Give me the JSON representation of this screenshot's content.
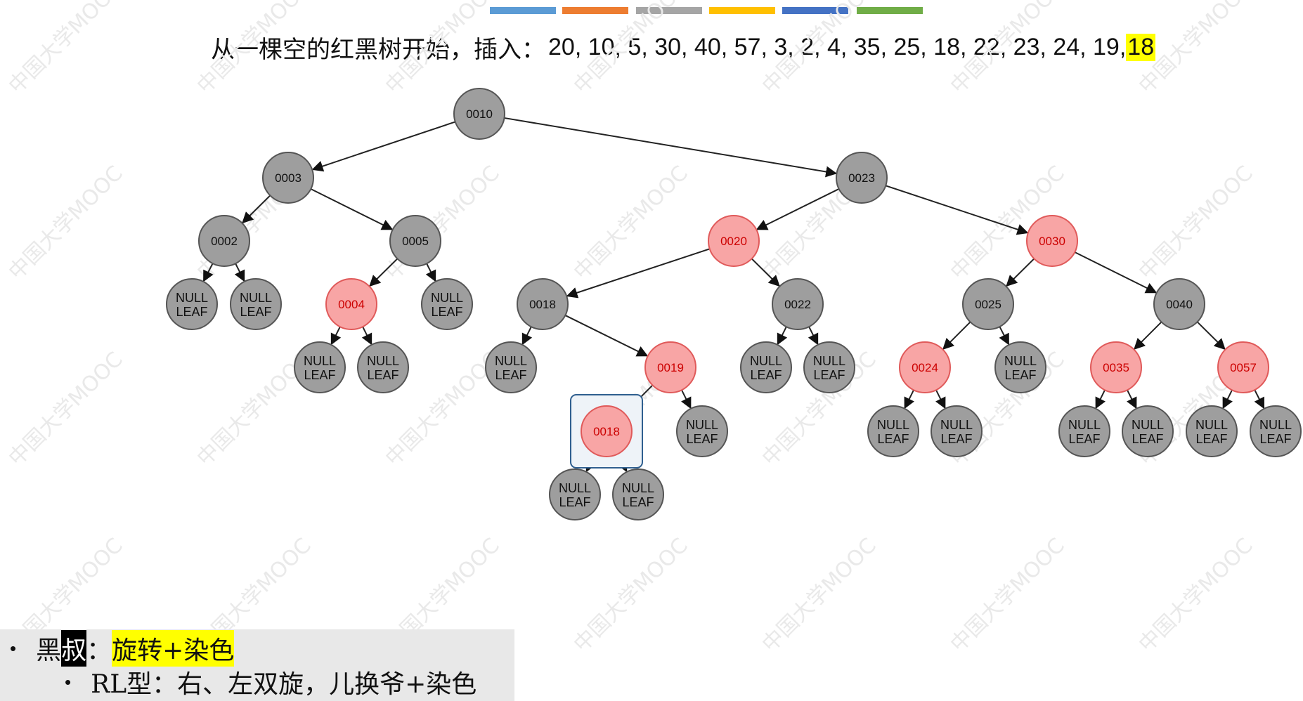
{
  "header_stripes": [
    "#5b9bd5",
    "#ed7d31",
    "#a5a5a5",
    "#ffc000",
    "#4472c4",
    "#70ad47"
  ],
  "title": {
    "prefix": "从一棵空的红黑树开始，插入：",
    "sequence": "20, 10, 5, 30, 40, 57, 3, 2, 4, 35, 25, 18, 22, 23, 24, 19,",
    "current": "18"
  },
  "colors": {
    "black_fill": "#9e9e9e",
    "black_stroke": "#555555",
    "red_fill": "#f8a5a5",
    "red_stroke": "#e05a5a",
    "red_text": "#cc0000",
    "highlight": "#ffff00",
    "selection": "#2f5f8f"
  },
  "tree": {
    "nodes": [
      {
        "id": "n10",
        "label": "0010",
        "color": "black"
      },
      {
        "id": "n3",
        "label": "0003",
        "color": "black"
      },
      {
        "id": "n23",
        "label": "0023",
        "color": "black"
      },
      {
        "id": "n2",
        "label": "0002",
        "color": "black"
      },
      {
        "id": "n5",
        "label": "0005",
        "color": "black"
      },
      {
        "id": "n20",
        "label": "0020",
        "color": "red"
      },
      {
        "id": "n30",
        "label": "0030",
        "color": "red"
      },
      {
        "id": "l2a",
        "label": "NULL\nLEAF",
        "color": "black"
      },
      {
        "id": "l2b",
        "label": "NULL\nLEAF",
        "color": "black"
      },
      {
        "id": "n4",
        "label": "0004",
        "color": "red"
      },
      {
        "id": "l5b",
        "label": "NULL\nLEAF",
        "color": "black"
      },
      {
        "id": "n18",
        "label": "0018",
        "color": "black"
      },
      {
        "id": "n22",
        "label": "0022",
        "color": "black"
      },
      {
        "id": "n25",
        "label": "0025",
        "color": "black"
      },
      {
        "id": "n40",
        "label": "0040",
        "color": "black"
      },
      {
        "id": "l4a",
        "label": "NULL\nLEAF",
        "color": "black"
      },
      {
        "id": "l4b",
        "label": "NULL\nLEAF",
        "color": "black"
      },
      {
        "id": "l18a",
        "label": "NULL\nLEAF",
        "color": "black"
      },
      {
        "id": "n19",
        "label": "0019",
        "color": "red"
      },
      {
        "id": "l22a",
        "label": "NULL\nLEAF",
        "color": "black"
      },
      {
        "id": "l22b",
        "label": "NULL\nLEAF",
        "color": "black"
      },
      {
        "id": "n24",
        "label": "0024",
        "color": "red"
      },
      {
        "id": "l25b",
        "label": "NULL\nLEAF",
        "color": "black"
      },
      {
        "id": "n35",
        "label": "0035",
        "color": "red"
      },
      {
        "id": "n57",
        "label": "0057",
        "color": "red"
      },
      {
        "id": "n18new",
        "label": "0018",
        "color": "red",
        "selected": true
      },
      {
        "id": "l19b",
        "label": "NULL\nLEAF",
        "color": "black"
      },
      {
        "id": "l24a",
        "label": "NULL\nLEAF",
        "color": "black"
      },
      {
        "id": "l24b",
        "label": "NULL\nLEAF",
        "color": "black"
      },
      {
        "id": "l35a",
        "label": "NULL\nLEAF",
        "color": "black"
      },
      {
        "id": "l35b",
        "label": "NULL\nLEAF",
        "color": "black"
      },
      {
        "id": "l57a",
        "label": "NULL\nLEAF",
        "color": "black"
      },
      {
        "id": "l57b",
        "label": "NULL\nLEAF",
        "color": "black"
      },
      {
        "id": "l18na",
        "label": "NULL\nLEAF",
        "color": "black"
      },
      {
        "id": "l18nb",
        "label": "NULL\nLEAF",
        "color": "black"
      }
    ],
    "edges": [
      [
        "n10",
        "n3"
      ],
      [
        "n10",
        "n23"
      ],
      [
        "n3",
        "n2"
      ],
      [
        "n3",
        "n5"
      ],
      [
        "n2",
        "l2a"
      ],
      [
        "n2",
        "l2b"
      ],
      [
        "n5",
        "n4"
      ],
      [
        "n5",
        "l5b"
      ],
      [
        "n4",
        "l4a"
      ],
      [
        "n4",
        "l4b"
      ],
      [
        "n23",
        "n20"
      ],
      [
        "n23",
        "n30"
      ],
      [
        "n20",
        "n18"
      ],
      [
        "n20",
        "n22"
      ],
      [
        "n18",
        "l18a"
      ],
      [
        "n18",
        "n19"
      ],
      [
        "n19",
        "n18new"
      ],
      [
        "n19",
        "l19b"
      ],
      [
        "n18new",
        "l18na"
      ],
      [
        "n18new",
        "l18nb"
      ],
      [
        "n22",
        "l22a"
      ],
      [
        "n22",
        "l22b"
      ],
      [
        "n30",
        "n25"
      ],
      [
        "n30",
        "n40"
      ],
      [
        "n25",
        "n24"
      ],
      [
        "n25",
        "l25b"
      ],
      [
        "n24",
        "l24a"
      ],
      [
        "n24",
        "l24b"
      ],
      [
        "n40",
        "n35"
      ],
      [
        "n40",
        "n57"
      ],
      [
        "n35",
        "l35a"
      ],
      [
        "n35",
        "l35b"
      ],
      [
        "n57",
        "l57a"
      ],
      [
        "n57",
        "l57b"
      ]
    ]
  },
  "watermark_text": "中国大学MOOC",
  "notes": {
    "bullet": "•",
    "line1": {
      "prefix": "黑",
      "inverted": "叔",
      "colon": "：",
      "highlighted": "旋转+染色"
    },
    "line2": {
      "text": "RL型：右、左双旋，儿换爷+染色"
    }
  }
}
